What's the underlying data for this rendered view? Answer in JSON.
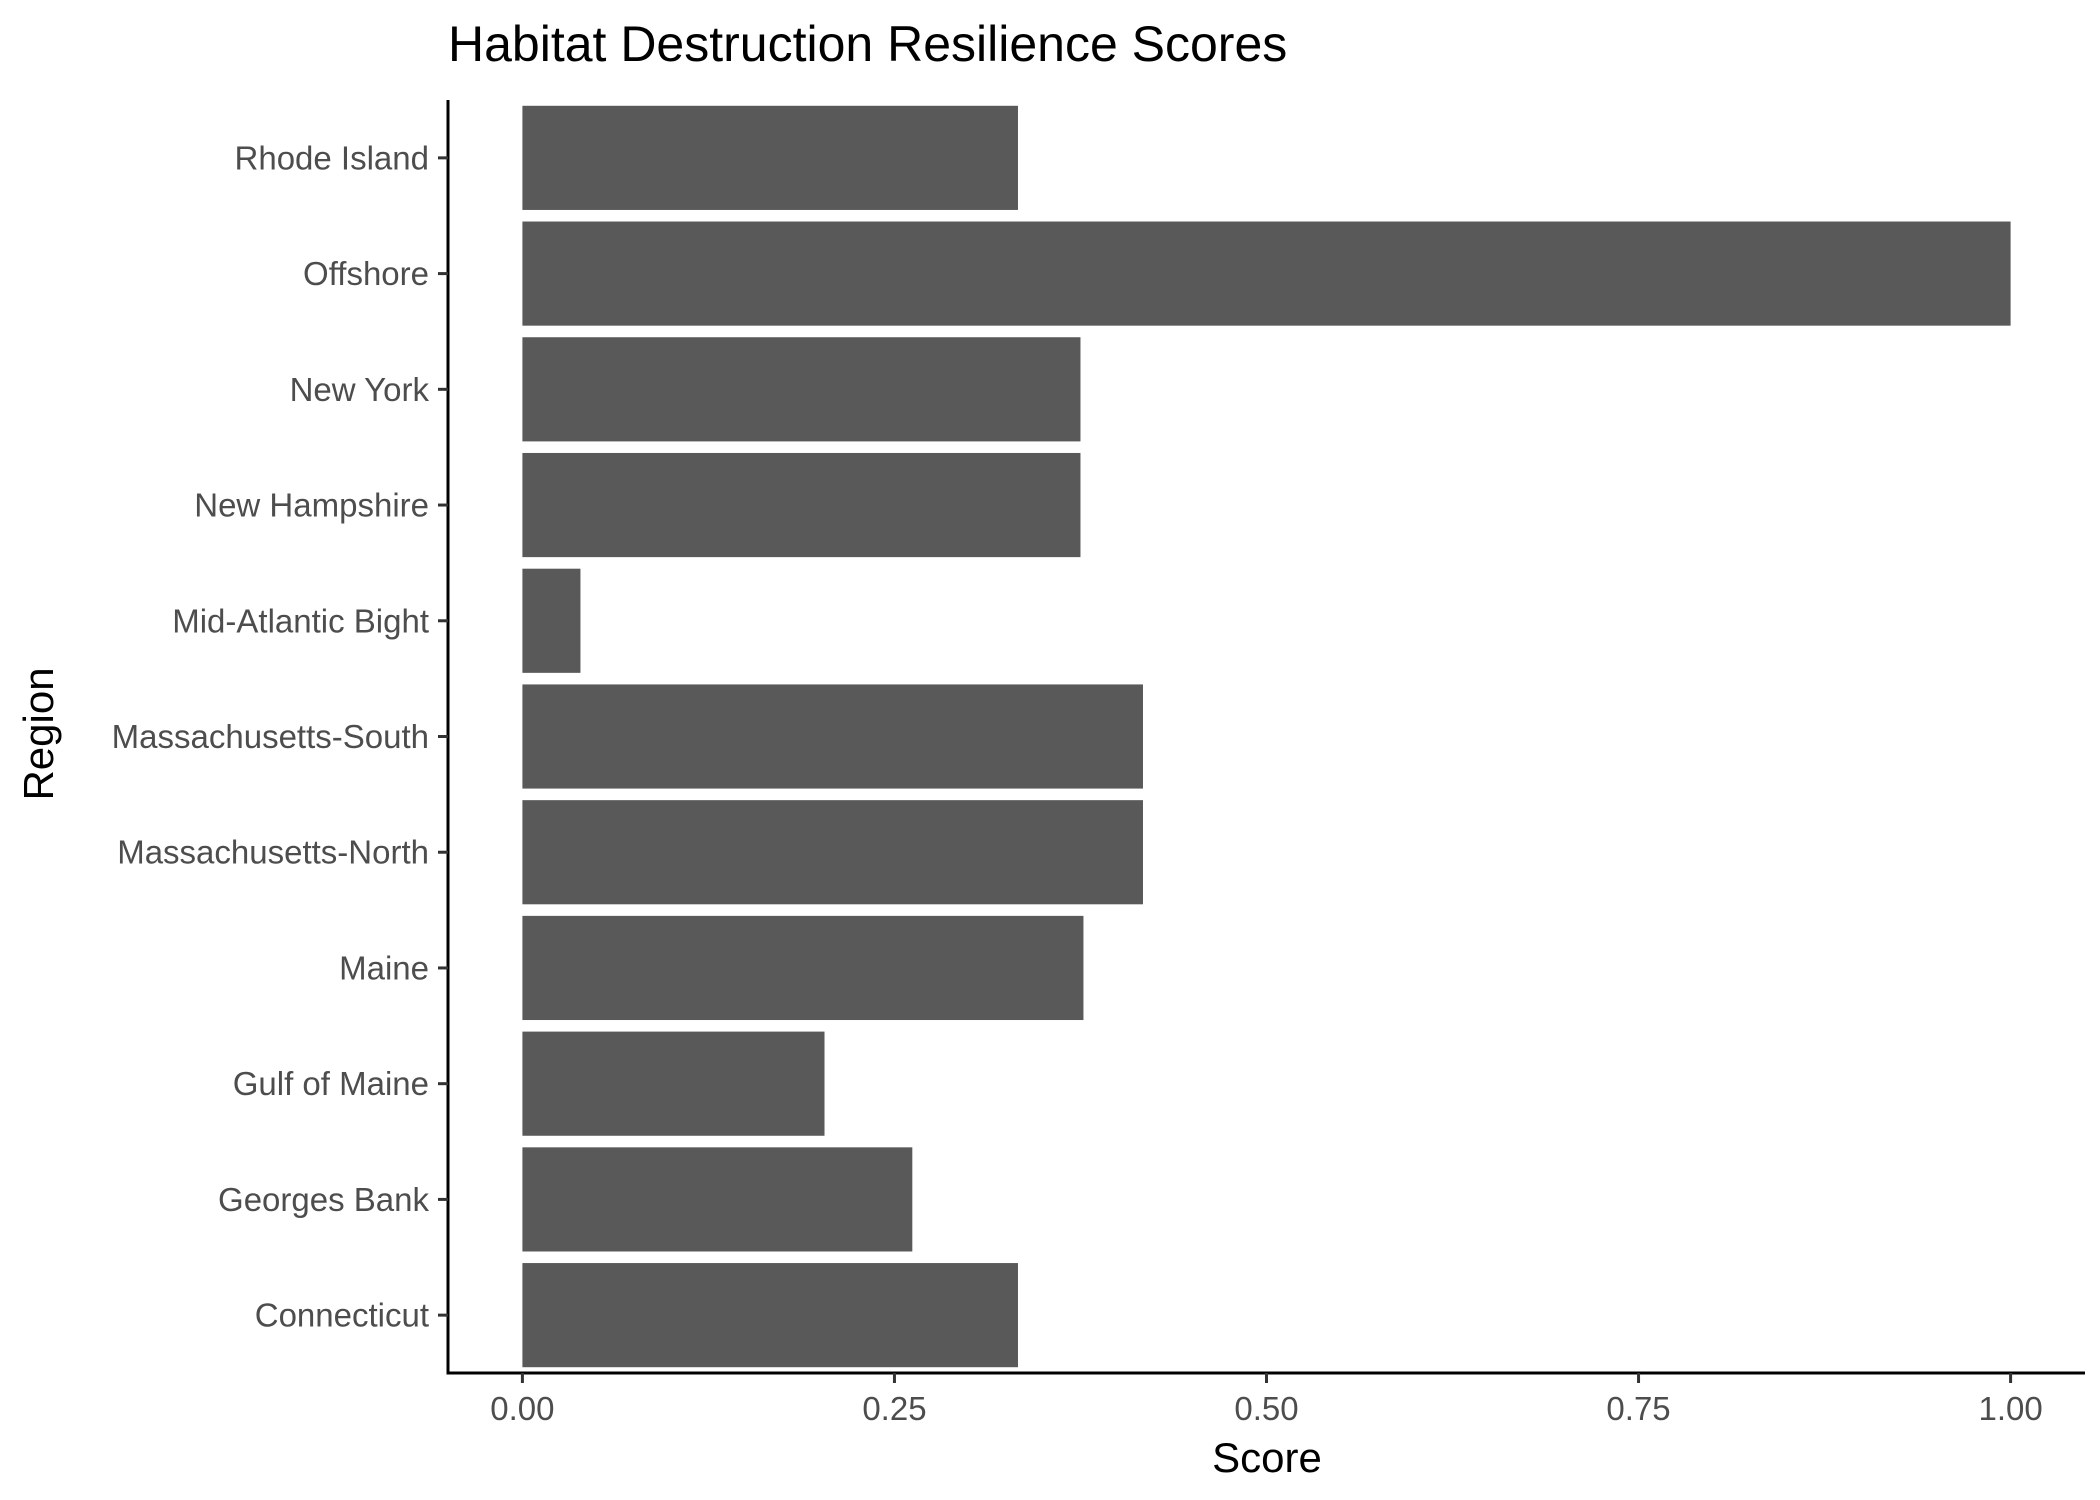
{
  "chart_data": {
    "type": "bar",
    "orientation": "horizontal",
    "title": "Habitat Destruction Resilience Scores",
    "xlabel": "Score",
    "ylabel": "Region",
    "categories": [
      "Connecticut",
      "Georges Bank",
      "Gulf of Maine",
      "Maine",
      "Massachusetts-North",
      "Massachusetts-South",
      "Mid-Atlantic Bight",
      "New Hampshire",
      "New York",
      "Offshore",
      "Rhode Island"
    ],
    "values": [
      0.333,
      0.262,
      0.203,
      0.377,
      0.417,
      0.417,
      0.039,
      0.375,
      0.375,
      1.0,
      0.333
    ],
    "xlim": [
      -0.05,
      1.05
    ],
    "xticks": [
      0,
      0.25,
      0.5,
      0.75,
      1
    ],
    "xtick_labels": [
      "0.00",
      "0.25",
      "0.50",
      "0.75",
      "1.00"
    ],
    "grid": false,
    "legend": "none",
    "bar_color": "#595959"
  }
}
